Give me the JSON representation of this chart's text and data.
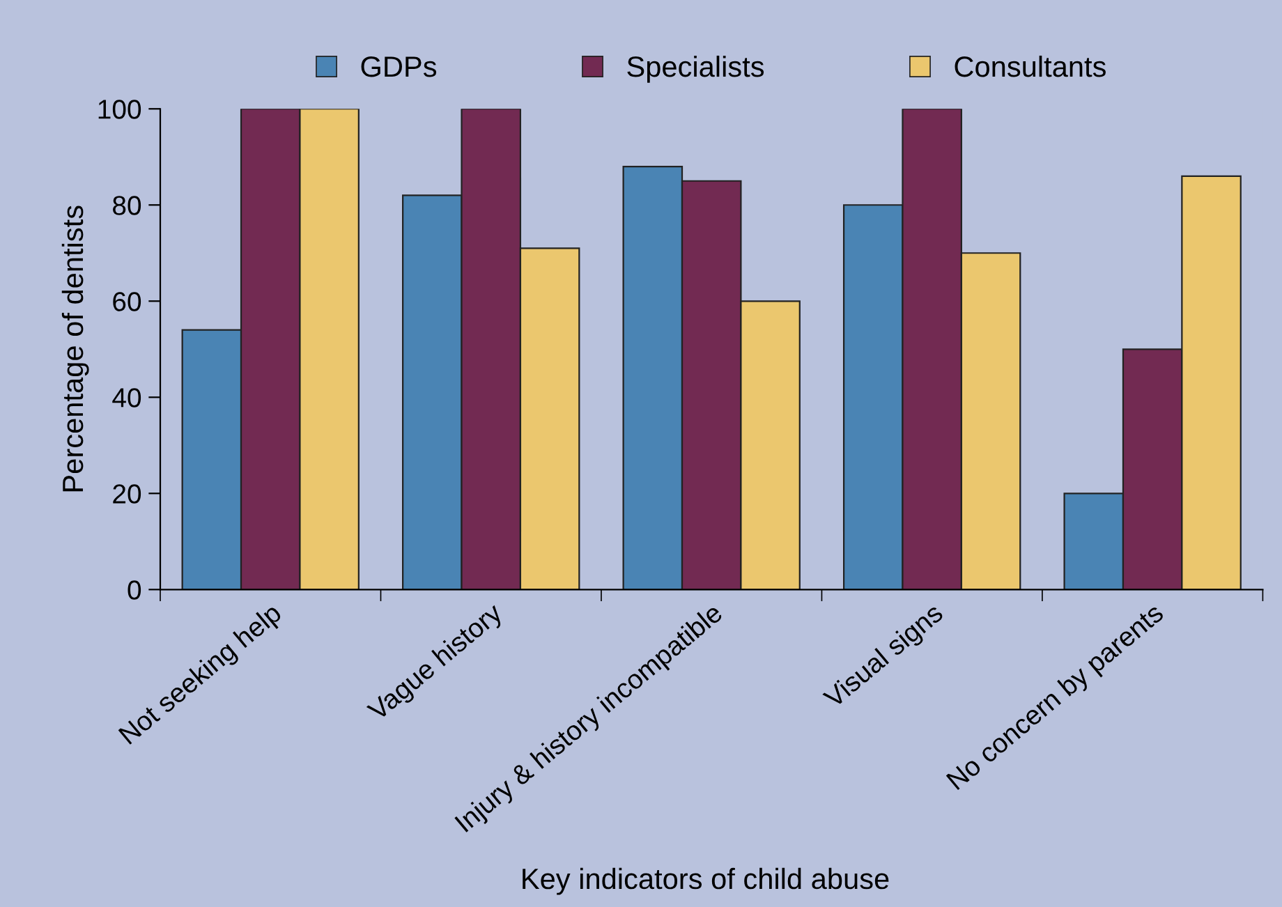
{
  "chart_data": {
    "type": "bar",
    "xlabel": "Key indicators of child abuse",
    "ylabel": "Percentage of dentists",
    "categories": [
      "Not seeking help",
      "Vague history",
      "Injury & history incompatible",
      "Visual signs",
      "No concern by parents"
    ],
    "series": [
      {
        "name": "GDPs",
        "color": "#4a84b4",
        "values": [
          54,
          82,
          88,
          80,
          20
        ]
      },
      {
        "name": "Specialists",
        "color": "#722a52",
        "values": [
          100,
          100,
          85,
          100,
          50
        ]
      },
      {
        "name": "Consultants",
        "color": "#ebc76e",
        "values": [
          100,
          71,
          60,
          70,
          86
        ]
      }
    ],
    "ylim": [
      0,
      100
    ],
    "yticks": [
      0,
      20,
      40,
      60,
      80,
      100
    ],
    "grid": false,
    "legend": "top"
  }
}
